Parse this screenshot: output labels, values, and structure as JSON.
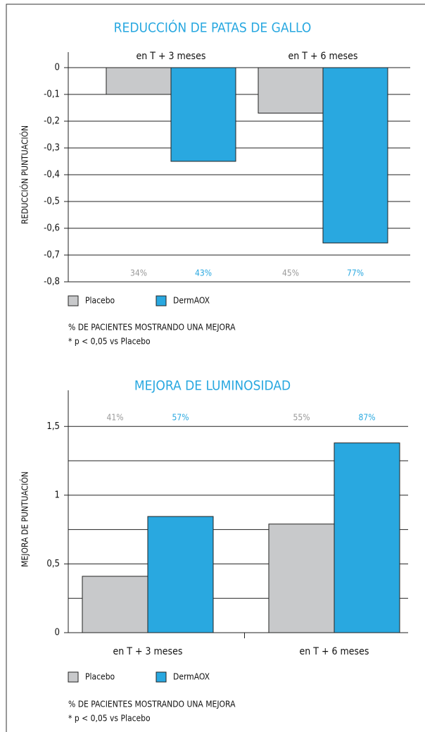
{
  "chart_data": [
    {
      "type": "bar",
      "title": "REDUCCIÓN DE PATAS DE GALLO",
      "ylabel": "REDUCCIÓN PUNTUACIÓN",
      "categories": [
        "en T + 3 meses",
        "en T + 6 meses"
      ],
      "series": [
        {
          "name": "Placebo",
          "color": "#c8c9cb",
          "values": [
            -0.1,
            -0.17
          ],
          "patient_pct": [
            "34%",
            "45%"
          ]
        },
        {
          "name": "DermAOX",
          "color": "#29a8e0",
          "values": [
            -0.35,
            -0.655
          ],
          "patient_pct": [
            "43%",
            "77%"
          ]
        }
      ],
      "ylim": [
        -0.8,
        0
      ],
      "yticks": [
        0,
        {
          "value": -0.1,
          "label": "-0,1"
        },
        {
          "value": -0.2,
          "label": "-0,2"
        },
        {
          "value": -0.3,
          "label": "-0,3"
        },
        {
          "value": -0.4,
          "label": "-0,4"
        },
        {
          "value": -0.5,
          "label": "-0,5"
        },
        {
          "value": -0.6,
          "label": "-0,6"
        },
        {
          "value": -0.7,
          "label": "-0,7"
        },
        {
          "value": -0.8,
          "label": "-0,8"
        }
      ],
      "grid": true,
      "notes": [
        "% DE PACIENTES MOSTRANDO UNA MEJORA",
        "* p < 0,05 vs Placebo"
      ]
    },
    {
      "type": "bar",
      "title": "MEJORA DE LUMINOSIDAD",
      "ylabel": "MEJORA DE PUNTUACIÓN",
      "categories": [
        "en T + 3 meses",
        "en T + 6 meses"
      ],
      "series": [
        {
          "name": "Placebo",
          "color": "#c8c9cb",
          "values": [
            0.41,
            0.79
          ],
          "patient_pct": [
            "41%",
            "55%"
          ]
        },
        {
          "name": "DermAOX",
          "color": "#29a8e0",
          "values": [
            0.845,
            1.38
          ],
          "patient_pct": [
            "57%",
            "87%"
          ]
        }
      ],
      "ylim": [
        0,
        1.65
      ],
      "yticks": [
        0,
        {
          "value": 0.5,
          "label": "0,5"
        },
        1,
        {
          "value": 1.5,
          "label": "1,5"
        }
      ],
      "minor_yticks": [
        0.25,
        0.75,
        1.25
      ],
      "grid": true,
      "notes": [
        "% DE PACIENTES MOSTRANDO UNA MEJORA",
        "* p < 0,05 vs Placebo"
      ]
    }
  ]
}
